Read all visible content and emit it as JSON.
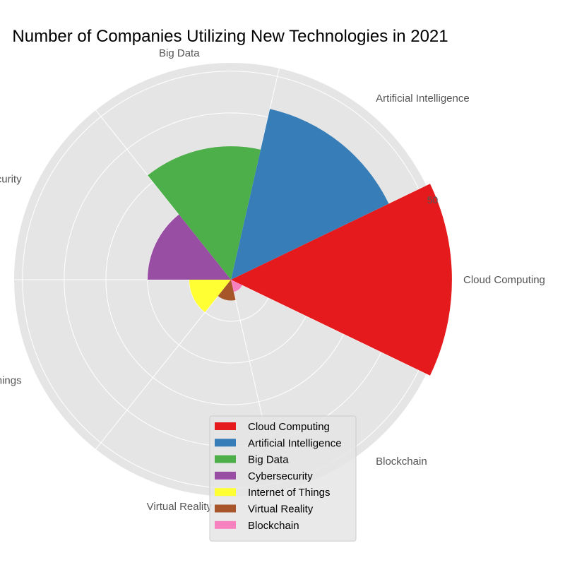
{
  "chart_data": {
    "type": "polar-bar",
    "title": "Number of Companies Utilizing New Technologies in 2021",
    "categories": [
      "Cloud Computing",
      "Artificial Intelligence",
      "Big Data",
      "Cybersecurity",
      "Internet of Things",
      "Virtual Reality",
      "Blockchain"
    ],
    "values": [
      53,
      42,
      32,
      20,
      10,
      5,
      3
    ],
    "colors": [
      "#e41a1c",
      "#377eb8",
      "#4daf4a",
      "#984ea3",
      "#ffff33",
      "#a65628",
      "#f781bf"
    ],
    "rlim": [
      0,
      52
    ],
    "radial_ticks": [
      10,
      20,
      30,
      40,
      50
    ],
    "radial_tick_labels_shown": [
      "50"
    ],
    "grid": true,
    "legend_position": "lower center"
  }
}
